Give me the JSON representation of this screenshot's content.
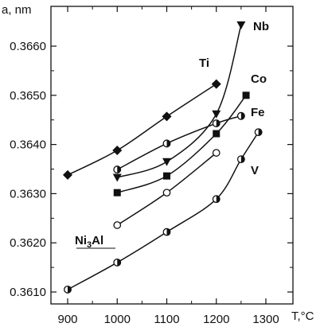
{
  "chart_data": {
    "type": "line",
    "title": "",
    "xlabel": "T,°C",
    "ylabel": "a, nm",
    "xlim": [
      880,
      1340
    ],
    "ylim": [
      0.3607,
      0.3667
    ],
    "x_ticks": [
      900,
      1000,
      1100,
      1200,
      1300
    ],
    "y_ticks": [
      0.361,
      0.362,
      0.363,
      0.364,
      0.365,
      0.366
    ],
    "x_tick_labels": [
      "900",
      "1000",
      "1100",
      "1200",
      "1300"
    ],
    "y_tick_labels": [
      "0.3610",
      "0.3620",
      "0.3630",
      "0.3640",
      "0.3650",
      "0.3660"
    ],
    "grid": false,
    "series": [
      {
        "name": "Ti",
        "marker": "diamond",
        "points": [
          [
            900,
            0.36338
          ],
          [
            1000,
            0.36388
          ],
          [
            1100,
            0.36457
          ],
          [
            1200,
            0.36523
          ]
        ]
      },
      {
        "name": "Nb",
        "marker": "triangle-down",
        "points": [
          [
            1000,
            0.36333
          ],
          [
            1100,
            0.36365
          ],
          [
            1200,
            0.36462
          ],
          [
            1250,
            0.36643
          ]
        ]
      },
      {
        "name": "Co",
        "marker": "square",
        "points": [
          [
            1000,
            0.36302
          ],
          [
            1100,
            0.36336
          ],
          [
            1200,
            0.36422
          ],
          [
            1260,
            0.365
          ]
        ]
      },
      {
        "name": "Fe",
        "marker": "half-circle",
        "points": [
          [
            1000,
            0.36349
          ],
          [
            1100,
            0.36402
          ],
          [
            1200,
            0.36443
          ],
          [
            1250,
            0.36458
          ]
        ]
      },
      {
        "name": "Ni₃Al",
        "marker": "open-circle",
        "points": [
          [
            1000,
            0.36236
          ],
          [
            1100,
            0.36302
          ],
          [
            1200,
            0.36383
          ]
        ]
      },
      {
        "name": "V",
        "marker": "half-circle",
        "points": [
          [
            900,
            0.36105
          ],
          [
            1000,
            0.3616
          ],
          [
            1100,
            0.36222
          ],
          [
            1200,
            0.36289
          ],
          [
            1250,
            0.3637
          ],
          [
            1285,
            0.36425
          ]
        ]
      }
    ],
    "labels": {
      "Nb": "Nb",
      "Ti": "Ti",
      "Co": "Co",
      "Fe": "Fe",
      "V": "V",
      "Ni3Al_main": "Ni",
      "Ni3Al_sub": "3",
      "Ni3Al_end": "Al"
    }
  }
}
